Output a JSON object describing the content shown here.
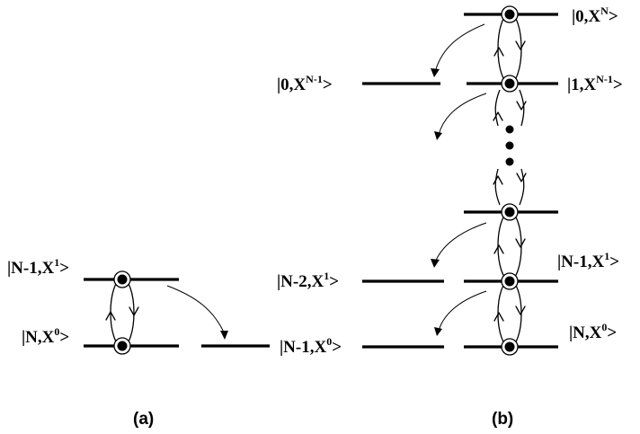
{
  "diagram": {
    "panels": {
      "a": "(a)",
      "b": "(b)"
    },
    "labels": {
      "a_top": {
        "base": "|N-1,X",
        "sup": "1",
        "tail": ">"
      },
      "a_bottom": {
        "base": "|N,X",
        "sup": "0",
        "tail": ">"
      },
      "mid_bottom": {
        "base": "|N-1,X",
        "sup": "0",
        "tail": ">"
      },
      "mid_upper": {
        "base": "|N-2,X",
        "sup": "1",
        "tail": ">"
      },
      "b_top_left": {
        "base": "|0,X",
        "sup": "N-1",
        "tail": ">"
      },
      "b_top": {
        "base": "|0,X",
        "sup": "N",
        "tail": ">"
      },
      "b_second": {
        "base": "|1,X",
        "sup": "N-1",
        "tail": ">"
      },
      "b_right_upper": {
        "base": "|N-1,X",
        "sup": "1",
        "tail": ">"
      },
      "b_right_bottom": {
        "base": "|N,X",
        "sup": "0",
        "tail": ">"
      }
    },
    "ellipsis": "dots"
  }
}
